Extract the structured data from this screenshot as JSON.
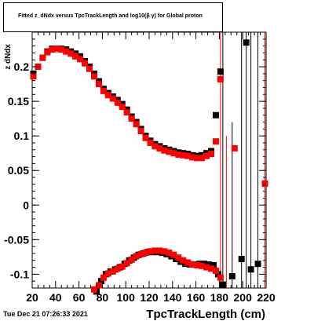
{
  "title": "Fitted  z_dNdx  versus TpcTrackLength and log10(β γ) for Global proton",
  "timestamp": "Tue Dec 21 07:26:33 2021",
  "chart_data": {
    "type": "scatter",
    "xlabel": "TpcTrackLength (cm)",
    "ylabel": "z dNdx",
    "xlim": [
      20,
      220
    ],
    "ylim": [
      -0.12,
      0.25
    ],
    "x_ticks": [
      20,
      40,
      60,
      80,
      100,
      120,
      140,
      160,
      180,
      200,
      220
    ],
    "y_ticks": [
      -0.1,
      -0.05,
      0,
      0.05,
      0.1,
      0.15,
      0.2
    ],
    "y_tick_labels": [
      "-0.1",
      "-0.05",
      "0",
      "0.05",
      "0.1",
      "0.15",
      "0.2"
    ],
    "series": [
      {
        "color": "#000000",
        "marker": "square",
        "upper": [
          [
            21,
            0.19
          ],
          [
            25,
            0.2
          ],
          [
            29,
            0.213
          ],
          [
            33,
            0.222
          ],
          [
            37,
            0.226
          ],
          [
            41,
            0.226
          ],
          [
            45,
            0.226
          ],
          [
            49,
            0.225
          ],
          [
            53,
            0.222
          ],
          [
            57,
            0.219
          ],
          [
            61,
            0.215
          ],
          [
            65,
            0.208
          ],
          [
            69,
            0.2
          ],
          [
            73,
            0.19
          ],
          [
            77,
            0.179
          ],
          [
            81,
            0.168
          ],
          [
            85,
            0.162
          ],
          [
            89,
            0.157
          ],
          [
            93,
            0.152
          ],
          [
            97,
            0.146
          ],
          [
            101,
            0.138
          ],
          [
            105,
            0.128
          ],
          [
            109,
            0.12
          ],
          [
            113,
            0.11
          ],
          [
            117,
            0.1
          ],
          [
            121,
            0.093
          ],
          [
            125,
            0.088
          ],
          [
            129,
            0.085
          ],
          [
            133,
            0.082
          ],
          [
            137,
            0.08
          ],
          [
            141,
            0.078
          ],
          [
            145,
            0.076
          ],
          [
            149,
            0.075
          ],
          [
            153,
            0.074
          ],
          [
            157,
            0.072
          ],
          [
            161,
            0.071
          ],
          [
            165,
            0.072
          ],
          [
            169,
            0.075
          ],
          [
            173,
            0.078
          ],
          [
            177,
            0.13
          ],
          [
            181,
            0.193
          ],
          [
            203,
            0.235
          ]
        ],
        "lower": [
          [
            75,
            -0.125
          ],
          [
            79,
            -0.11
          ],
          [
            83,
            -0.1
          ],
          [
            87,
            -0.096
          ],
          [
            91,
            -0.093
          ],
          [
            95,
            -0.09
          ],
          [
            99,
            -0.085
          ],
          [
            103,
            -0.08
          ],
          [
            107,
            -0.076
          ],
          [
            111,
            -0.072
          ],
          [
            115,
            -0.07
          ],
          [
            119,
            -0.068
          ],
          [
            123,
            -0.068
          ],
          [
            127,
            -0.068
          ],
          [
            131,
            -0.069
          ],
          [
            135,
            -0.071
          ],
          [
            139,
            -0.074
          ],
          [
            143,
            -0.078
          ],
          [
            147,
            -0.082
          ],
          [
            151,
            -0.085
          ],
          [
            155,
            -0.086
          ],
          [
            159,
            -0.086
          ],
          [
            163,
            -0.085
          ],
          [
            167,
            -0.085
          ],
          [
            171,
            -0.086
          ],
          [
            175,
            -0.087
          ],
          [
            179,
            -0.1
          ],
          [
            183,
            -0.115
          ],
          [
            191,
            -0.103
          ],
          [
            199,
            -0.078
          ],
          [
            207,
            -0.093
          ],
          [
            213,
            -0.085
          ]
        ]
      },
      {
        "color": "#ff0000",
        "marker": "square",
        "upper": [
          [
            21,
            0.186
          ],
          [
            25,
            0.2
          ],
          [
            29,
            0.213
          ],
          [
            33,
            0.221
          ],
          [
            37,
            0.225
          ],
          [
            41,
            0.226
          ],
          [
            45,
            0.225
          ],
          [
            49,
            0.222
          ],
          [
            53,
            0.219
          ],
          [
            57,
            0.215
          ],
          [
            61,
            0.211
          ],
          [
            65,
            0.205
          ],
          [
            69,
            0.197
          ],
          [
            73,
            0.186
          ],
          [
            77,
            0.175
          ],
          [
            81,
            0.165
          ],
          [
            85,
            0.159
          ],
          [
            89,
            0.154
          ],
          [
            93,
            0.148
          ],
          [
            97,
            0.142
          ],
          [
            101,
            0.134
          ],
          [
            105,
            0.125
          ],
          [
            109,
            0.117
          ],
          [
            113,
            0.107
          ],
          [
            117,
            0.097
          ],
          [
            121,
            0.09
          ],
          [
            125,
            0.085
          ],
          [
            129,
            0.082
          ],
          [
            133,
            0.079
          ],
          [
            137,
            0.077
          ],
          [
            141,
            0.075
          ],
          [
            145,
            0.073
          ],
          [
            149,
            0.072
          ],
          [
            153,
            0.071
          ],
          [
            157,
            0.069
          ],
          [
            161,
            0.068
          ],
          [
            165,
            0.068
          ],
          [
            169,
            0.071
          ],
          [
            173,
            0.074
          ],
          [
            177,
            0.092
          ],
          [
            181,
            0.182
          ],
          [
            193,
            0.082
          ],
          [
            219,
            0.031
          ]
        ],
        "lower": [
          [
            73,
            -0.122
          ],
          [
            77,
            -0.116
          ],
          [
            81,
            -0.105
          ],
          [
            85,
            -0.099
          ],
          [
            89,
            -0.096
          ],
          [
            93,
            -0.092
          ],
          [
            97,
            -0.089
          ],
          [
            101,
            -0.084
          ],
          [
            105,
            -0.079
          ],
          [
            109,
            -0.074
          ],
          [
            113,
            -0.071
          ],
          [
            117,
            -0.069
          ],
          [
            121,
            -0.067
          ],
          [
            125,
            -0.066
          ],
          [
            129,
            -0.066
          ],
          [
            133,
            -0.067
          ],
          [
            137,
            -0.069
          ],
          [
            141,
            -0.072
          ],
          [
            145,
            -0.076
          ],
          [
            149,
            -0.08
          ],
          [
            153,
            -0.083
          ],
          [
            157,
            -0.086
          ],
          [
            161,
            -0.087
          ],
          [
            165,
            -0.088
          ],
          [
            169,
            -0.09
          ],
          [
            173,
            -0.092
          ],
          [
            177,
            -0.095
          ],
          [
            181,
            -0.105
          ]
        ]
      }
    ],
    "error_bars": [
      {
        "x": 181,
        "ymin": -0.12,
        "ymax": 0.25,
        "color": "#ff0000"
      },
      {
        "x": 183,
        "ymin": -0.12,
        "ymax": 0.25,
        "color": "#000000"
      },
      {
        "x": 186,
        "ymin": -0.12,
        "ymax": 0.1,
        "color": "#ff0000"
      },
      {
        "x": 191,
        "ymin": -0.12,
        "ymax": 0.12,
        "color": "#000000"
      },
      {
        "x": 199,
        "ymin": -0.12,
        "ymax": 0.25,
        "color": "#000000"
      },
      {
        "x": 203,
        "ymin": -0.12,
        "ymax": 0.25,
        "color": "#000000"
      },
      {
        "x": 207,
        "ymin": -0.12,
        "ymax": 0.25,
        "color": "#000000"
      },
      {
        "x": 213,
        "ymin": -0.12,
        "ymax": 0.25,
        "color": "#000000"
      },
      {
        "x": 219,
        "ymin": -0.12,
        "ymax": 0.25,
        "color": "#ff0000"
      }
    ]
  }
}
